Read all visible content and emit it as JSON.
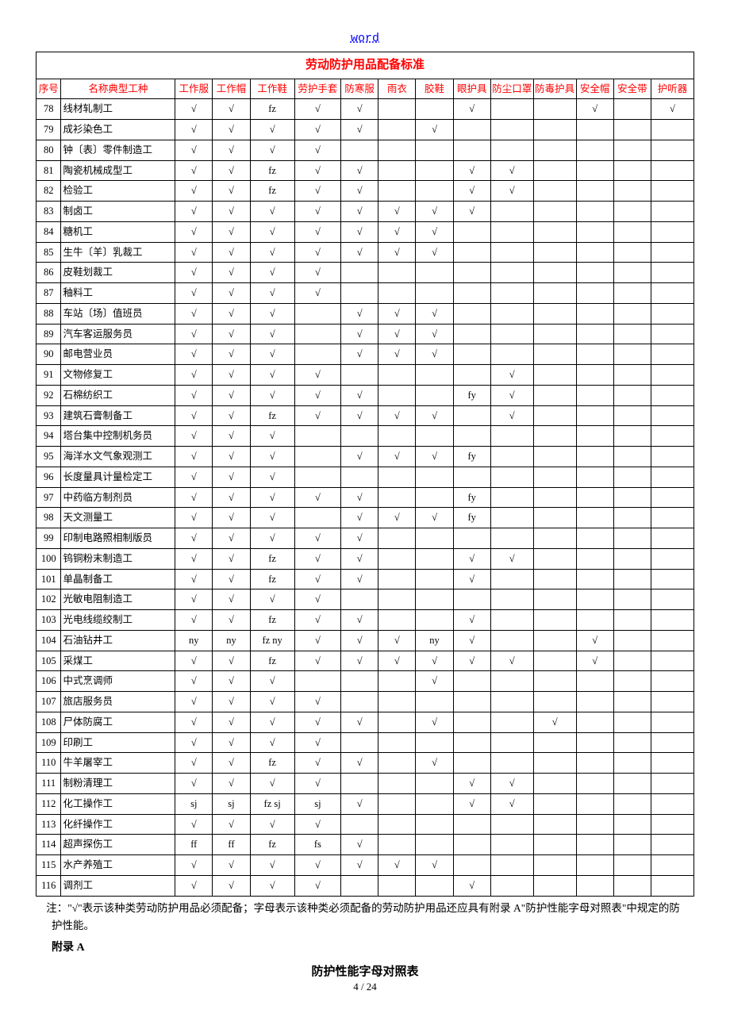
{
  "header_link": "word",
  "table": {
    "title": "劳动防护用品配备标准",
    "columns": [
      "序号",
      "名称典型工种",
      "工作服",
      "工作帽",
      "工作鞋",
      "劳护手套",
      "防寒服",
      "雨衣",
      "胶鞋",
      "眼护具",
      "防尘口罩",
      "防毒护具",
      "安全帽",
      "安全带",
      "护听器"
    ],
    "col_widths": [
      "c-idx",
      "c-name",
      "c-std",
      "c-std",
      "c-shoe",
      "c-glove",
      "c-std",
      "c-std",
      "c-std",
      "c-std",
      "c-wide",
      "c-wide",
      "c-std",
      "c-std",
      "c-wide"
    ],
    "header_color": "#ff0000",
    "rows": [
      {
        "n": "78",
        "name": "线材轧制工",
        "v": [
          "√",
          "√",
          "fz",
          "√",
          "√",
          "",
          "",
          "√",
          "",
          "",
          "√",
          "",
          "√"
        ]
      },
      {
        "n": "79",
        "name": "成衫染色工",
        "v": [
          "√",
          "√",
          "√",
          "√",
          "√",
          "",
          "√",
          "",
          "",
          "",
          "",
          "",
          ""
        ]
      },
      {
        "n": "80",
        "name": "钟〔表〕零件制造工",
        "v": [
          "√",
          "√",
          "√",
          "√",
          "",
          "",
          "",
          "",
          "",
          "",
          "",
          "",
          ""
        ]
      },
      {
        "n": "81",
        "name": "陶瓷机械成型工",
        "v": [
          "√",
          "√",
          "fz",
          "√",
          "√",
          "",
          "",
          "√",
          "√",
          "",
          "",
          "",
          ""
        ]
      },
      {
        "n": "82",
        "name": "检验工",
        "v": [
          "√",
          "√",
          "fz",
          "√",
          "√",
          "",
          "",
          "√",
          "√",
          "",
          "",
          "",
          ""
        ]
      },
      {
        "n": "83",
        "name": "制卤工",
        "v": [
          "√",
          "√",
          "√",
          "√",
          "√",
          "√",
          "√",
          "√",
          "",
          "",
          "",
          "",
          ""
        ]
      },
      {
        "n": "84",
        "name": "糖机工",
        "v": [
          "√",
          "√",
          "√",
          "√",
          "√",
          "√",
          "√",
          "",
          "",
          "",
          "",
          "",
          ""
        ]
      },
      {
        "n": "85",
        "name": "生牛〔羊〕乳裁工",
        "v": [
          "√",
          "√",
          "√",
          "√",
          "√",
          "√",
          "√",
          "",
          "",
          "",
          "",
          "",
          ""
        ]
      },
      {
        "n": "86",
        "name": "皮鞋划裁工",
        "v": [
          "√",
          "√",
          "√",
          "√",
          "",
          "",
          "",
          "",
          "",
          "",
          "",
          "",
          ""
        ]
      },
      {
        "n": "87",
        "name": "釉料工",
        "v": [
          "√",
          "√",
          "√",
          "√",
          "",
          "",
          "",
          "",
          "",
          "",
          "",
          "",
          ""
        ]
      },
      {
        "n": "88",
        "name": "车站〔场〕值班员",
        "v": [
          "√",
          "√",
          "√",
          "",
          "√",
          "√",
          "√",
          "",
          "",
          "",
          "",
          "",
          ""
        ]
      },
      {
        "n": "89",
        "name": "汽车客运服务员",
        "v": [
          "√",
          "√",
          "√",
          "",
          "√",
          "√",
          "√",
          "",
          "",
          "",
          "",
          "",
          ""
        ]
      },
      {
        "n": "90",
        "name": "邮电营业员",
        "v": [
          "√",
          "√",
          "√",
          "",
          "√",
          "√",
          "√",
          "",
          "",
          "",
          "",
          "",
          ""
        ]
      },
      {
        "n": "91",
        "name": "文物修复工",
        "v": [
          "√",
          "√",
          "√",
          "√",
          "",
          "",
          "",
          "",
          "√",
          "",
          "",
          "",
          ""
        ]
      },
      {
        "n": "92",
        "name": "石棉纺织工",
        "v": [
          "√",
          "√",
          "√",
          "√",
          "√",
          "",
          "",
          "fy",
          "√",
          "",
          "",
          "",
          ""
        ]
      },
      {
        "n": "93",
        "name": "建筑石膏制备工",
        "v": [
          "√",
          "√",
          "fz",
          "√",
          "√",
          "√",
          "√",
          "",
          "√",
          "",
          "",
          "",
          ""
        ]
      },
      {
        "n": "94",
        "name": "塔台集中控制机务员",
        "v": [
          "√",
          "√",
          "√",
          "",
          "",
          "",
          "",
          "",
          "",
          "",
          "",
          "",
          ""
        ]
      },
      {
        "n": "95",
        "name": "海洋水文气象观测工",
        "v": [
          "√",
          "√",
          "√",
          "",
          "√",
          "√",
          "√",
          "fy",
          "",
          "",
          "",
          "",
          ""
        ]
      },
      {
        "n": "96",
        "name": "长度量具计量检定工",
        "v": [
          "√",
          "√",
          "√",
          "",
          "",
          "",
          "",
          "",
          "",
          "",
          "",
          "",
          ""
        ]
      },
      {
        "n": "97",
        "name": "中药临方制剂员",
        "v": [
          "√",
          "√",
          "√",
          "√",
          "√",
          "",
          "",
          "fy",
          "",
          "",
          "",
          "",
          ""
        ]
      },
      {
        "n": "98",
        "name": "天文测量工",
        "v": [
          "√",
          "√",
          "√",
          "",
          "√",
          "√",
          "√",
          "fy",
          "",
          "",
          "",
          "",
          ""
        ]
      },
      {
        "n": "99",
        "name": "印制电路照相制版员",
        "v": [
          "√",
          "√",
          "√",
          "√",
          "√",
          "",
          "",
          "",
          "",
          "",
          "",
          "",
          ""
        ]
      },
      {
        "n": "100",
        "name": "钨铜粉末制造工",
        "v": [
          "√",
          "√",
          "fz",
          "√",
          "√",
          "",
          "",
          "√",
          "√",
          "",
          "",
          "",
          ""
        ]
      },
      {
        "n": "101",
        "name": "单晶制备工",
        "v": [
          "√",
          "√",
          "fz",
          "√",
          "√",
          "",
          "",
          "√",
          "",
          "",
          "",
          "",
          ""
        ]
      },
      {
        "n": "102",
        "name": "光敏电阻制造工",
        "v": [
          "√",
          "√",
          "√",
          "√",
          "",
          "",
          "",
          "",
          "",
          "",
          "",
          "",
          ""
        ]
      },
      {
        "n": "103",
        "name": "光电线缆绞制工",
        "v": [
          "√",
          "√",
          "fz",
          "√",
          "√",
          "",
          "",
          "√",
          "",
          "",
          "",
          "",
          ""
        ]
      },
      {
        "n": "104",
        "name": "石油钻井工",
        "v": [
          "ny",
          "ny",
          "fz ny",
          "√",
          "√",
          "√",
          "ny",
          "√",
          "",
          "",
          "√",
          "",
          ""
        ]
      },
      {
        "n": "105",
        "name": "采煤工",
        "v": [
          "√",
          "√",
          "fz",
          "√",
          "√",
          "√",
          "√",
          "√",
          "√",
          "",
          "√",
          "",
          ""
        ]
      },
      {
        "n": "106",
        "name": "中式烹调师",
        "v": [
          "√",
          "√",
          "√",
          "",
          "",
          "",
          "√",
          "",
          "",
          "",
          "",
          "",
          ""
        ]
      },
      {
        "n": "107",
        "name": "旅店服务员",
        "v": [
          "√",
          "√",
          "√",
          "√",
          "",
          "",
          "",
          "",
          "",
          "",
          "",
          "",
          ""
        ]
      },
      {
        "n": "108",
        "name": "尸体防腐工",
        "v": [
          "√",
          "√",
          "√",
          "√",
          "√",
          "",
          "√",
          "",
          "",
          "√",
          "",
          "",
          ""
        ]
      },
      {
        "n": "109",
        "name": "印刷工",
        "v": [
          "√",
          "√",
          "√",
          "√",
          "",
          "",
          "",
          "",
          "",
          "",
          "",
          "",
          ""
        ]
      },
      {
        "n": "110",
        "name": "牛羊屠宰工",
        "v": [
          "√",
          "√",
          "fz",
          "√",
          "√",
          "",
          "√",
          "",
          "",
          "",
          "",
          "",
          ""
        ]
      },
      {
        "n": "111",
        "name": "制粉清理工",
        "v": [
          "√",
          "√",
          "√",
          "√",
          "",
          "",
          "",
          "√",
          "√",
          "",
          "",
          "",
          ""
        ]
      },
      {
        "n": "112",
        "name": "化工操作工",
        "v": [
          "sj",
          "sj",
          "fz sj",
          "sj",
          "√",
          "",
          "",
          "√",
          "√",
          "",
          "",
          "",
          ""
        ]
      },
      {
        "n": "113",
        "name": "化纤操作工",
        "v": [
          "√",
          "√",
          "√",
          "√",
          "",
          "",
          "",
          "",
          "",
          "",
          "",
          "",
          ""
        ]
      },
      {
        "n": "114",
        "name": "超声探伤工",
        "v": [
          "ff",
          "ff",
          "fz",
          "fs",
          "√",
          "",
          "",
          "",
          "",
          "",
          "",
          "",
          ""
        ]
      },
      {
        "n": "115",
        "name": "水产养殖工",
        "v": [
          "√",
          "√",
          "√",
          "√",
          "√",
          "√",
          "√",
          "",
          "",
          "",
          "",
          "",
          ""
        ]
      },
      {
        "n": "116",
        "name": "调剂工",
        "v": [
          "√",
          "√",
          "√",
          "√",
          "",
          "",
          "",
          "√",
          "",
          "",
          "",
          "",
          ""
        ]
      }
    ]
  },
  "note_text": "注：\"√\"表示该种类劳动防护用品必须配备；字母表示该种类必须配备的劳动防护用品还应具有附录 A\"防护性能字母对照表\"中规定的防护性能。",
  "appendix_label": "附录 A",
  "sub_title": "防护性能字母对照表",
  "page_number": "4 / 24"
}
